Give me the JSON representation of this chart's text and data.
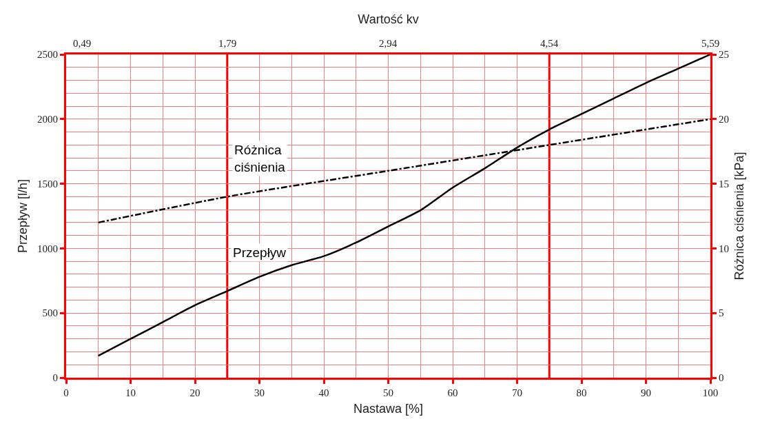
{
  "chart_data": {
    "type": "line",
    "xlabel": "Nastawa [%]",
    "ylabel": "Przepływ [l/h]",
    "y2label": "Różnica ciśnienia [kPa]",
    "x2label": "Wartość kv",
    "xlim": [
      0,
      100
    ],
    "xticks": [
      0,
      {
        "value": 5,
        "label": null
      },
      10,
      {
        "value": 15,
        "label": null
      },
      20,
      30,
      {
        "value": 35,
        "label": null
      },
      40,
      {
        "value": 45,
        "label": null
      },
      50,
      {
        "value": 55,
        "label": null
      },
      60,
      {
        "value": 65,
        "label": null
      },
      70,
      80,
      {
        "value": 85,
        "label": null
      },
      90,
      {
        "value": 95,
        "label": null
      },
      100
    ],
    "ylim": [
      0,
      2500
    ],
    "yticks": [
      0,
      {
        "value": 100,
        "label": null
      },
      {
        "value": 200,
        "label": null
      },
      {
        "value": 300,
        "label": null
      },
      {
        "value": 400,
        "label": null
      },
      500,
      {
        "value": 600,
        "label": null
      },
      {
        "value": 700,
        "label": null
      },
      {
        "value": 800,
        "label": null
      },
      {
        "value": 900,
        "label": null
      },
      1000,
      {
        "value": 1100,
        "label": null
      },
      {
        "value": 1200,
        "label": null
      },
      {
        "value": 1300,
        "label": null
      },
      {
        "value": 1400,
        "label": null
      },
      1500,
      {
        "value": 1600,
        "label": null
      },
      {
        "value": 1700,
        "label": null
      },
      {
        "value": 1800,
        "label": null
      },
      {
        "value": 1900,
        "label": null
      },
      2000,
      {
        "value": 2100,
        "label": null
      },
      {
        "value": 2200,
        "label": null
      },
      {
        "value": 2300,
        "label": null
      },
      {
        "value": 2400,
        "label": null
      },
      2500
    ],
    "y2lim": [
      0,
      25
    ],
    "y2ticks": [
      0,
      5,
      10,
      15,
      20,
      25
    ],
    "grid": true,
    "legend": false,
    "marker": "none",
    "series": [
      {
        "name": "Przepływ",
        "color": "#000000",
        "line_style": "solid",
        "x": [
          5,
          10,
          15,
          20,
          25,
          30,
          35,
          40,
          45,
          50,
          55,
          60,
          65,
          70,
          75,
          80,
          85,
          90,
          95,
          100
        ],
        "values": [
          170,
          300,
          430,
          560,
          670,
          780,
          870,
          940,
          1045,
          1170,
          1295,
          1470,
          1620,
          1780,
          1920,
          2040,
          2160,
          2280,
          2390,
          2500
        ]
      },
      {
        "name": "Różnica\nciśnienia",
        "color": "#000000",
        "line_style": "dashdot",
        "axis": "y2",
        "x": [
          5,
          25,
          50,
          75,
          100
        ],
        "values": [
          12,
          14,
          16,
          18,
          20
        ]
      }
    ],
    "ref_lines": [
      {
        "axis": "x",
        "value": 25,
        "color": "#ff0000"
      },
      {
        "axis": "x",
        "value": 75,
        "color": "#ff0000"
      }
    ],
    "annotations": [
      "0,49",
      "1,79",
      "2,94",
      "4,54",
      "5,59"
    ]
  }
}
